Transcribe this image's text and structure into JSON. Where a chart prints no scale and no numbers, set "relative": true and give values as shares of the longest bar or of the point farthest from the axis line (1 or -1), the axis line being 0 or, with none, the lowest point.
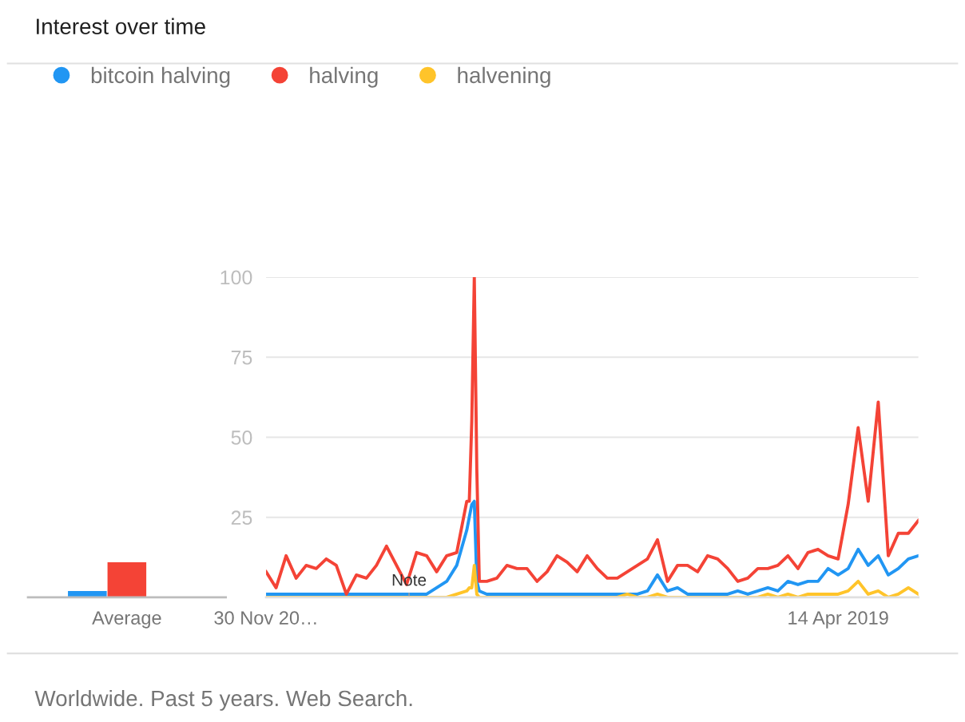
{
  "chart_data": [
    {
      "type": "bar",
      "relative": true,
      "categories": [
        "Average"
      ],
      "series": [
        {
          "color": "#2196f3",
          "values": [
            0.18
          ]
        },
        {
          "color": "#f44336",
          "values": [
            1
          ]
        },
        {
          "color": "#ffc42a",
          "values": [
            0
          ]
        }
      ]
    },
    {
      "type": "line",
      "title": "Interest over time",
      "annotations": [
        {
          "text": "Note",
          "x": "2016-01-03",
          "y": 5
        },
        "Worldwide. Past 5 years. Web Search."
      ],
      "xlim": [
        "2014-11-30",
        "2019-11-24"
      ],
      "xticks": [
        {
          "value": "2014-11-30",
          "label": "30 Nov 20…"
        },
        {
          "value": "2019-04-14",
          "label": "14 Apr 2019"
        }
      ],
      "ylim": [
        0,
        100
      ],
      "yticks": [
        25,
        50,
        75,
        100
      ],
      "grid": "y",
      "legend": "top left",
      "marker": "none",
      "line_style": "solid",
      "x": [
        "2014-11-30",
        "2014-12-28",
        "2015-01-25",
        "2015-02-22",
        "2015-03-22",
        "2015-04-19",
        "2015-05-17",
        "2015-06-14",
        "2015-07-12",
        "2015-08-09",
        "2015-09-06",
        "2015-10-04",
        "2015-11-01",
        "2015-11-29",
        "2015-12-27",
        "2016-01-24",
        "2016-02-21",
        "2016-03-20",
        "2016-04-17",
        "2016-05-15",
        "2016-06-12",
        "2016-06-19",
        "2016-06-26",
        "2016-07-03",
        "2016-07-10",
        "2016-07-17",
        "2016-08-07",
        "2016-09-04",
        "2016-10-02",
        "2016-10-30",
        "2016-11-27",
        "2016-12-25",
        "2017-01-22",
        "2017-02-19",
        "2017-03-19",
        "2017-04-16",
        "2017-05-14",
        "2017-06-11",
        "2017-07-09",
        "2017-08-06",
        "2017-09-03",
        "2017-10-01",
        "2017-10-29",
        "2017-11-26",
        "2017-12-24",
        "2018-01-21",
        "2018-02-18",
        "2018-03-18",
        "2018-04-15",
        "2018-05-13",
        "2018-06-10",
        "2018-07-08",
        "2018-08-05",
        "2018-09-02",
        "2018-09-30",
        "2018-10-28",
        "2018-11-25",
        "2018-12-23",
        "2019-01-20",
        "2019-02-17",
        "2019-03-17",
        "2019-04-14",
        "2019-05-12",
        "2019-06-09",
        "2019-07-07",
        "2019-08-04",
        "2019-09-01",
        "2019-09-29",
        "2019-10-27",
        "2019-11-24"
      ],
      "series": [
        {
          "name": "bitcoin halving",
          "color": "#2196f3",
          "values": [
            1,
            1,
            1,
            1,
            1,
            1,
            1,
            1,
            1,
            1,
            1,
            1,
            1,
            1,
            1,
            1,
            1,
            3,
            5,
            10,
            21,
            25,
            29,
            30,
            5,
            2,
            1,
            1,
            1,
            1,
            1,
            1,
            1,
            1,
            1,
            1,
            1,
            1,
            1,
            1,
            1,
            1,
            2,
            7,
            2,
            3,
            1,
            1,
            1,
            1,
            1,
            2,
            1,
            2,
            3,
            2,
            5,
            4,
            5,
            5,
            9,
            7,
            9,
            15,
            10,
            13,
            7,
            9,
            12,
            13
          ]
        },
        {
          "name": "halving",
          "color": "#f44336",
          "values": [
            8,
            3,
            13,
            6,
            10,
            9,
            12,
            10,
            1,
            7,
            6,
            10,
            16,
            10,
            4,
            14,
            13,
            8,
            13,
            14,
            30,
            30,
            55,
            100,
            40,
            5,
            5,
            6,
            10,
            9,
            9,
            5,
            8,
            13,
            11,
            8,
            13,
            9,
            6,
            6,
            8,
            10,
            12,
            18,
            5,
            10,
            10,
            8,
            13,
            12,
            9,
            5,
            6,
            9,
            9,
            10,
            13,
            9,
            14,
            15,
            13,
            12,
            29,
            53,
            30,
            61,
            13,
            20,
            20,
            24
          ]
        },
        {
          "name": "halvening",
          "color": "#ffc42a",
          "values": [
            0,
            0,
            0,
            0,
            0,
            0,
            0,
            0,
            0,
            0,
            0,
            0,
            0,
            0,
            0,
            0,
            0,
            0,
            0,
            1,
            2,
            3,
            3,
            10,
            1,
            0,
            0,
            0,
            0,
            0,
            0,
            0,
            0,
            0,
            0,
            0,
            0,
            0,
            0,
            0,
            1,
            0,
            0,
            1,
            0,
            0,
            0,
            0,
            0,
            0,
            0,
            0,
            0,
            0,
            1,
            0,
            1,
            0,
            1,
            1,
            1,
            1,
            2,
            5,
            1,
            2,
            0,
            1,
            3,
            1
          ]
        }
      ]
    }
  ]
}
